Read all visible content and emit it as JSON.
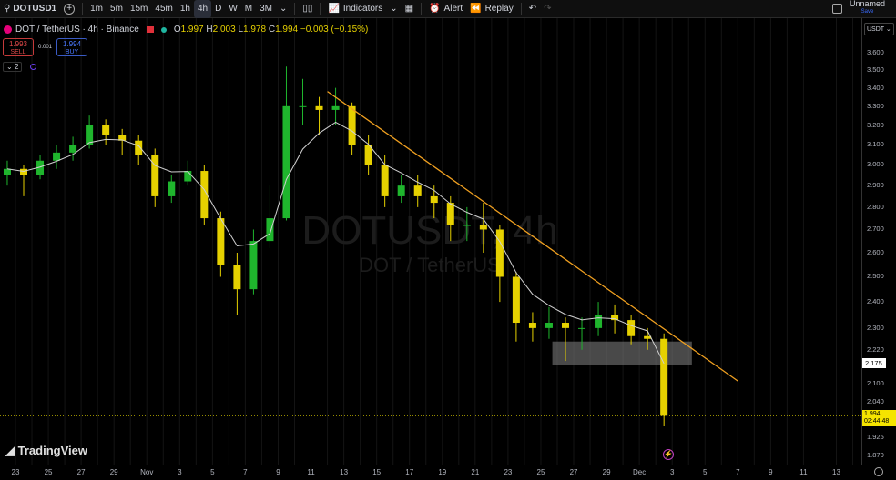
{
  "toolbar": {
    "symbol": "DOTUSD1",
    "intervals": [
      "1m",
      "5m",
      "15m",
      "45m",
      "1h",
      "4h",
      "D",
      "W",
      "M",
      "3M"
    ],
    "active_interval": "4h",
    "indicators_label": "Indicators",
    "alert_label": "Alert",
    "replay_label": "Replay",
    "layout_name": "Unnamed",
    "save_label": "Save"
  },
  "legend": {
    "title": "DOT / TetherUS · 4h · Binance",
    "open_label": "O",
    "open": "1.997",
    "high_label": "H",
    "high": "2.003",
    "low_label": "L",
    "low": "1.978",
    "close_label": "C",
    "close": "1.994",
    "change": "−0.003 (−0.15%)",
    "sell_price": "1.993",
    "sell_label": "SELL",
    "spread": "0.001",
    "buy_price": "1.994",
    "buy_label": "BUY",
    "indicators_count": "2"
  },
  "watermark": {
    "line1": "DOTUSDT, 4h",
    "line2": "DOT / TetherUS"
  },
  "brand": "TradingView",
  "currency": "USDT",
  "colors": {
    "up": "#1fb52d",
    "down": "#e6d100",
    "trendline": "#f0a020",
    "ma": "#d0d0d0",
    "zone": "#7a7a7a",
    "last_price": "#f5e400"
  },
  "chart_data": {
    "type": "candlestick",
    "scale": "log",
    "ylim": [
      1.85,
      3.65
    ],
    "y_ticks": [
      "3.600",
      "3.500",
      "3.400",
      "3.300",
      "3.200",
      "3.100",
      "3.000",
      "2.900",
      "2.800",
      "2.700",
      "2.600",
      "2.500",
      "2.400",
      "2.300",
      "2.220",
      "2.100",
      "2.040",
      "1.925",
      "1.870"
    ],
    "x_ticks": [
      "23",
      "25",
      "27",
      "29",
      "Nov",
      "3",
      "5",
      "7",
      "9",
      "11",
      "13",
      "15",
      "17",
      "19",
      "21",
      "23",
      "25",
      "27",
      "29",
      "Dec",
      "3",
      "5",
      "7",
      "9",
      "11",
      "13"
    ],
    "candles": [
      {
        "date": "Oct 22",
        "o": 2.95,
        "h": 3.02,
        "l": 2.9,
        "c": 2.98
      },
      {
        "date": "Oct 23",
        "o": 2.98,
        "h": 3.0,
        "l": 2.85,
        "c": 2.95
      },
      {
        "date": "Oct 24",
        "o": 2.95,
        "h": 3.05,
        "l": 2.93,
        "c": 3.02
      },
      {
        "date": "Oct 25",
        "o": 3.02,
        "h": 3.1,
        "l": 2.98,
        "c": 3.06
      },
      {
        "date": "Oct 26",
        "o": 3.06,
        "h": 3.14,
        "l": 3.02,
        "c": 3.1
      },
      {
        "date": "Oct 27",
        "o": 3.1,
        "h": 3.25,
        "l": 3.08,
        "c": 3.2
      },
      {
        "date": "Oct 28",
        "o": 3.2,
        "h": 3.23,
        "l": 3.1,
        "c": 3.15
      },
      {
        "date": "Oct 29",
        "o": 3.15,
        "h": 3.18,
        "l": 3.05,
        "c": 3.12
      },
      {
        "date": "Oct 30",
        "o": 3.12,
        "h": 3.15,
        "l": 3.0,
        "c": 3.05
      },
      {
        "date": "Oct 31",
        "o": 3.05,
        "h": 3.08,
        "l": 2.8,
        "c": 2.85
      },
      {
        "date": "Nov 1",
        "o": 2.85,
        "h": 2.95,
        "l": 2.82,
        "c": 2.92
      },
      {
        "date": "Nov 2",
        "o": 2.92,
        "h": 3.02,
        "l": 2.9,
        "c": 2.97
      },
      {
        "date": "Nov 3",
        "o": 2.97,
        "h": 3.0,
        "l": 2.72,
        "c": 2.75
      },
      {
        "date": "Nov 4",
        "o": 2.75,
        "h": 2.78,
        "l": 2.5,
        "c": 2.55
      },
      {
        "date": "Nov 5",
        "o": 2.55,
        "h": 2.6,
        "l": 2.35,
        "c": 2.45
      },
      {
        "date": "Nov 6",
        "o": 2.45,
        "h": 2.7,
        "l": 2.43,
        "c": 2.65
      },
      {
        "date": "Nov 7",
        "o": 2.65,
        "h": 2.9,
        "l": 2.62,
        "c": 2.75
      },
      {
        "date": "Nov 8",
        "o": 2.75,
        "h": 3.52,
        "l": 2.74,
        "c": 3.3
      },
      {
        "date": "Nov 9",
        "o": 3.3,
        "h": 3.45,
        "l": 3.2,
        "c": 3.3
      },
      {
        "date": "Nov 10",
        "o": 3.3,
        "h": 3.35,
        "l": 3.15,
        "c": 3.28
      },
      {
        "date": "Nov 11",
        "o": 3.28,
        "h": 3.4,
        "l": 3.2,
        "c": 3.3
      },
      {
        "date": "Nov 12",
        "o": 3.3,
        "h": 3.32,
        "l": 3.05,
        "c": 3.1
      },
      {
        "date": "Nov 13",
        "o": 3.1,
        "h": 3.15,
        "l": 2.95,
        "c": 3.0
      },
      {
        "date": "Nov 14",
        "o": 3.0,
        "h": 3.05,
        "l": 2.8,
        "c": 2.85
      },
      {
        "date": "Nov 15",
        "o": 2.85,
        "h": 2.95,
        "l": 2.82,
        "c": 2.9
      },
      {
        "date": "Nov 16",
        "o": 2.9,
        "h": 2.95,
        "l": 2.8,
        "c": 2.85
      },
      {
        "date": "Nov 17",
        "o": 2.85,
        "h": 2.9,
        "l": 2.75,
        "c": 2.82
      },
      {
        "date": "Nov 18",
        "o": 2.82,
        "h": 2.85,
        "l": 2.65,
        "c": 2.72
      },
      {
        "date": "Nov 19",
        "o": 2.72,
        "h": 2.8,
        "l": 2.65,
        "c": 2.72
      },
      {
        "date": "Nov 20",
        "o": 2.72,
        "h": 2.82,
        "l": 2.6,
        "c": 2.7
      },
      {
        "date": "Nov 21",
        "o": 2.7,
        "h": 2.72,
        "l": 2.4,
        "c": 2.5
      },
      {
        "date": "Nov 22",
        "o": 2.5,
        "h": 2.52,
        "l": 2.25,
        "c": 2.32
      },
      {
        "date": "Nov 23",
        "o": 2.32,
        "h": 2.36,
        "l": 2.25,
        "c": 2.3
      },
      {
        "date": "Nov 24",
        "o": 2.3,
        "h": 2.38,
        "l": 2.26,
        "c": 2.32
      },
      {
        "date": "Nov 25",
        "o": 2.32,
        "h": 2.34,
        "l": 2.18,
        "c": 2.3
      },
      {
        "date": "Nov 26",
        "o": 2.3,
        "h": 2.34,
        "l": 2.22,
        "c": 2.3
      },
      {
        "date": "Nov 27",
        "o": 2.3,
        "h": 2.4,
        "l": 2.27,
        "c": 2.35
      },
      {
        "date": "Nov 28",
        "o": 2.35,
        "h": 2.39,
        "l": 2.28,
        "c": 2.33
      },
      {
        "date": "Nov 29",
        "o": 2.33,
        "h": 2.35,
        "l": 2.24,
        "c": 2.27
      },
      {
        "date": "Nov 30",
        "o": 2.27,
        "h": 2.3,
        "l": 2.22,
        "c": 2.26
      },
      {
        "date": "Dec 1",
        "o": 2.26,
        "h": 2.28,
        "l": 1.96,
        "c": 1.994
      }
    ],
    "trendline": {
      "from": {
        "date": "Nov 11",
        "price": 3.38
      },
      "to": {
        "date": "Dec 6",
        "price": 2.11
      }
    },
    "zone": {
      "from": "Nov 24.7",
      "to": "Dec 3.2",
      "top": 2.25,
      "bottom": 2.165
    },
    "last_price": "1.994",
    "countdown": "02:44:48",
    "marker_price": "2.175"
  }
}
